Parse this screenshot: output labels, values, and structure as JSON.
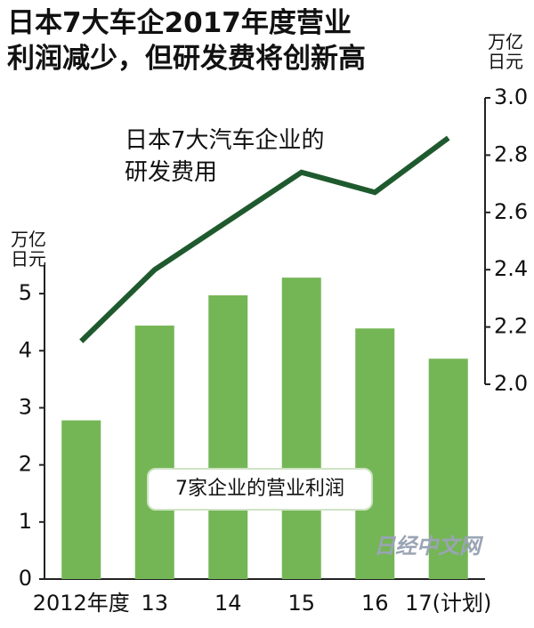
{
  "chart_data": {
    "type": "bar",
    "title": "日本7大车企2017年度营业\n利润减少，但研发费将创新高",
    "ylabel": "万亿\n日元",
    "y2label": "万亿\n日元",
    "categories": [
      "2012年度",
      "13",
      "14",
      "15",
      "16",
      "17(计划)"
    ],
    "series": [
      {
        "name": "7家企业的营业利润",
        "type": "bar",
        "color": "#74b655",
        "values": [
          2.78,
          4.44,
          4.97,
          5.28,
          4.39,
          3.86
        ]
      },
      {
        "name": "日本7大汽车企业的\n研发费用",
        "type": "line",
        "axis": "y2",
        "color": "#1f5a2e",
        "values": [
          2.15,
          2.4,
          2.57,
          2.74,
          2.67,
          2.86
        ]
      }
    ],
    "ylim": [
      0,
      5.5
    ],
    "yticks": [
      0,
      1,
      2,
      3,
      4,
      5
    ],
    "y2lim": [
      2.0,
      3.0
    ],
    "y2ticks": [
      {
        "value": 2.0,
        "label": "2.0"
      },
      2.2,
      2.4,
      2.6,
      2.8,
      {
        "value": 3.0,
        "label": "3.0"
      }
    ],
    "grid": false,
    "watermark": "日经中文网"
  }
}
